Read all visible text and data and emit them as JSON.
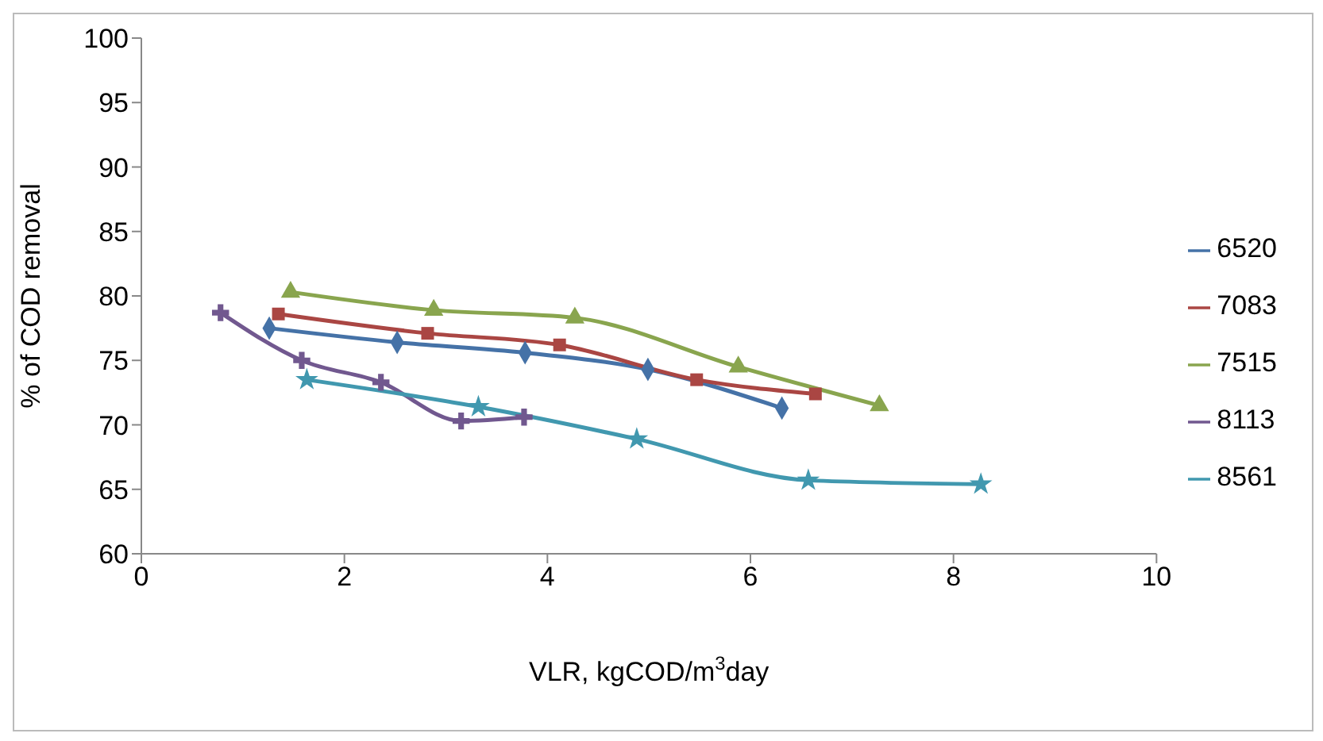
{
  "chart_data": {
    "type": "line",
    "xlabel": "VLR, kgCOD/m$^{3}$day",
    "ylabel": "% of COD removal",
    "xlim": [
      0,
      10
    ],
    "xticks": [
      0,
      2,
      4,
      6,
      8,
      10
    ],
    "ylim": [
      60,
      100
    ],
    "yticks": [
      60,
      65,
      70,
      75,
      80,
      85,
      90,
      95,
      100
    ],
    "grid": false,
    "legend": "right",
    "series": [
      {
        "name": "6520",
        "color": "#4572a7",
        "marker": "diamond",
        "x": [
          1.26,
          2.52,
          3.78,
          4.99,
          6.31
        ],
        "values": [
          77.5,
          76.4,
          75.6,
          74.3,
          71.3
        ]
      },
      {
        "name": "7083",
        "color": "#aa4643",
        "marker": "square",
        "x": [
          1.35,
          2.82,
          4.12,
          5.47,
          6.64
        ],
        "values": [
          78.6,
          77.1,
          76.2,
          73.5,
          72.4
        ]
      },
      {
        "name": "7515",
        "color": "#89a54e",
        "marker": "triangle",
        "x": [
          1.47,
          2.88,
          4.27,
          5.88,
          7.27
        ],
        "values": [
          80.3,
          78.9,
          78.3,
          74.5,
          71.5
        ]
      },
      {
        "name": "8113",
        "color": "#71588f",
        "marker": "cross",
        "x": [
          0.78,
          1.58,
          2.36,
          3.15,
          3.77
        ],
        "values": [
          78.7,
          75.0,
          73.3,
          70.3,
          70.6
        ]
      },
      {
        "name": "8561",
        "color": "#4198af",
        "marker": "star",
        "x": [
          1.63,
          3.32,
          4.88,
          6.57,
          8.27
        ],
        "values": [
          73.5,
          71.4,
          68.9,
          65.7,
          65.4
        ]
      }
    ]
  }
}
